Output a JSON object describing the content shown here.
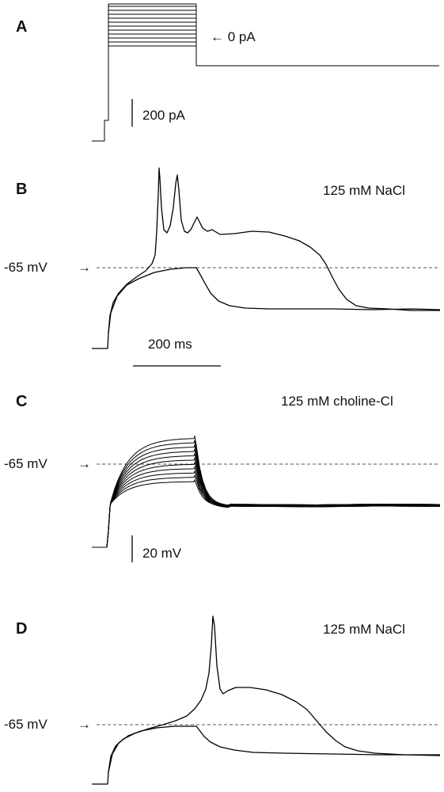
{
  "chart_data": [
    {
      "panel": "A",
      "type": "line",
      "annotations": {
        "current_marker": "← 0 pA",
        "scale_bar": "200 pA"
      },
      "series_count": 11
    },
    {
      "panel": "B",
      "type": "line",
      "condition": "125 mM NaCl",
      "annotations": {
        "resting_level": "-65 mV",
        "time_scale_bar": "200 ms"
      }
    },
    {
      "panel": "C",
      "type": "line",
      "condition": "125 mM choline-Cl",
      "annotations": {
        "resting_level": "-65 mV",
        "voltage_scale_bar": "20 mV"
      },
      "series_count": 11
    },
    {
      "panel": "D",
      "type": "line",
      "condition": "125 mM NaCl",
      "annotations": {
        "resting_level": "-65 mV"
      }
    }
  ],
  "panels": {
    "a": {
      "letter": "A",
      "marker": "← 0 pA",
      "scale": "200 pA"
    },
    "b": {
      "letter": "B",
      "condition": "125 mM NaCl",
      "rest": "-65 mV",
      "time_scale": "200 ms"
    },
    "c": {
      "letter": "C",
      "condition": "125 mM choline-Cl",
      "rest": "-65 mV",
      "volt_scale": "20 mV"
    },
    "d": {
      "letter": "D",
      "condition": "125 mM NaCl",
      "rest": "-65 mV"
    }
  }
}
